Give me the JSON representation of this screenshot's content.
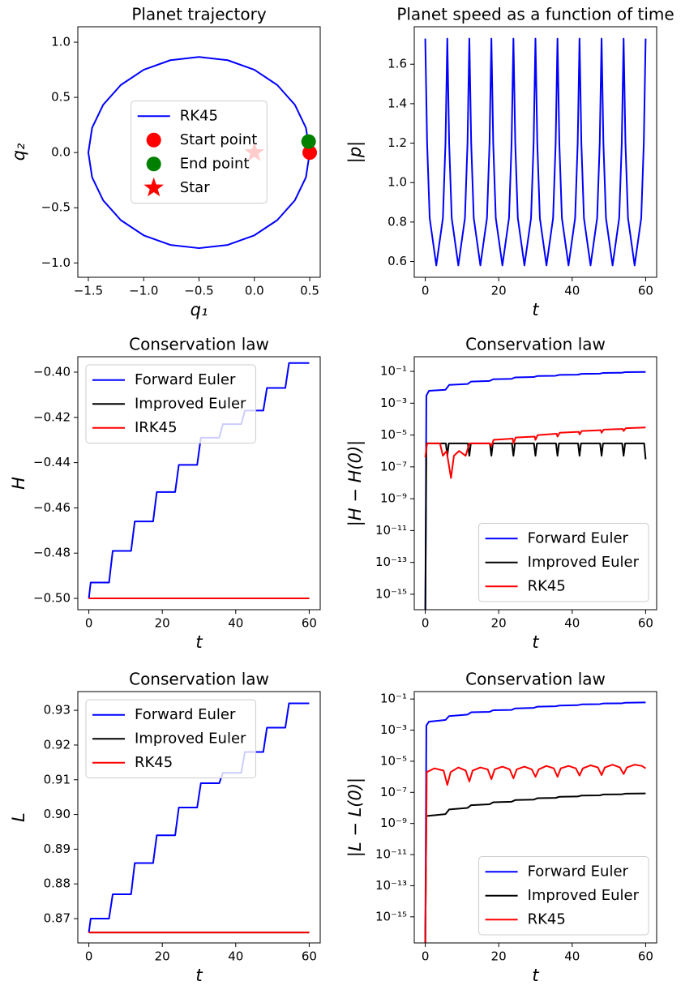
{
  "chart_data": [
    {
      "type": "line",
      "title": "Planet trajectory",
      "xlabel": "q₁",
      "ylabel": "q₂",
      "xlim": [
        -1.595,
        0.595
      ],
      "ylim": [
        -1.13,
        1.14
      ],
      "xticks": [
        {
          "value": -1.5,
          "label": "−1.5"
        },
        {
          "value": -1.0,
          "label": "−1.0"
        },
        {
          "value": -0.5,
          "label": "−0.5"
        },
        {
          "value": 0,
          "label": "0.0"
        },
        0.5
      ],
      "yticks": [
        {
          "value": -1.0,
          "label": "−1.0"
        },
        {
          "value": -0.5,
          "label": "−0.5"
        },
        {
          "value": 0,
          "label": "0.0"
        },
        0.5,
        {
          "value": 1.0,
          "label": "1.0"
        }
      ],
      "legend": "center",
      "series": [
        {
          "name": "RK45",
          "color": "blue",
          "x": [
            0.5,
            0.466,
            0.366,
            0.207,
            0,
            -0.241,
            -0.5,
            -0.759,
            -1.0,
            -1.207,
            -1.366,
            -1.466,
            -1.5,
            -1.466,
            -1.366,
            -1.207,
            -1.0,
            -0.759,
            -0.5,
            -0.241,
            0,
            0.207,
            0.366,
            0.466,
            0.5
          ],
          "values": [
            0,
            0.224,
            0.433,
            0.612,
            0.75,
            0.837,
            0.866,
            0.837,
            0.75,
            0.612,
            0.433,
            0.224,
            0,
            -0.224,
            -0.433,
            -0.612,
            -0.75,
            -0.837,
            -0.866,
            -0.837,
            -0.75,
            -0.612,
            -0.433,
            -0.224,
            0
          ]
        },
        {
          "name": "Start point",
          "color": "red",
          "marker": "circle",
          "x": [
            0.5
          ],
          "values": [
            0
          ]
        },
        {
          "name": "End point",
          "color": "green",
          "marker": "circle",
          "x": [
            0.49
          ],
          "values": [
            0.1
          ]
        },
        {
          "name": "Star",
          "color": "red",
          "marker": "star",
          "x": [
            0
          ],
          "values": [
            0
          ]
        }
      ]
    },
    {
      "type": "line",
      "title": "Planet speed as a function of time",
      "xlabel": "t",
      "ylabel": "|p|",
      "xlim": [
        -3,
        63
      ],
      "ylim": [
        0.52,
        1.79
      ],
      "xticks": [
        0,
        20,
        40,
        60
      ],
      "yticks": [
        0.6,
        0.8,
        {
          "value": 1.0,
          "label": "1.0"
        },
        1.2,
        1.4,
        1.6
      ],
      "series": [
        {
          "color": "blue",
          "x": [
            0,
            0.5,
            1.2,
            3,
            4.8,
            5.5,
            6,
            6.5,
            7.2,
            9,
            10.8,
            11.5,
            12,
            12.5,
            13.2,
            15,
            16.8,
            17.5,
            18,
            18.5,
            19.2,
            21,
            22.8,
            23.5,
            24,
            24.5,
            25.2,
            27,
            28.8,
            29.5,
            30,
            30.5,
            31.2,
            33,
            34.8,
            35.5,
            36,
            36.5,
            37.2,
            39,
            40.8,
            41.5,
            42,
            42.5,
            43.2,
            45,
            46.8,
            47.5,
            48,
            48.5,
            49.2,
            51,
            52.8,
            53.5,
            54,
            54.5,
            55.2,
            57,
            58.8,
            59.5,
            60
          ],
          "values": [
            1.73,
            1.2,
            0.82,
            0.58,
            0.82,
            1.2,
            1.73,
            1.2,
            0.82,
            0.58,
            0.82,
            1.2,
            1.73,
            1.2,
            0.82,
            0.58,
            0.82,
            1.2,
            1.73,
            1.2,
            0.82,
            0.58,
            0.82,
            1.2,
            1.73,
            1.2,
            0.82,
            0.58,
            0.82,
            1.2,
            1.73,
            1.2,
            0.82,
            0.58,
            0.82,
            1.2,
            1.73,
            1.2,
            0.82,
            0.58,
            0.82,
            1.2,
            1.73,
            1.2,
            0.82,
            0.58,
            0.82,
            1.2,
            1.73,
            1.2,
            0.82,
            0.58,
            0.82,
            1.2,
            1.73,
            1.2,
            0.82,
            0.58,
            0.82,
            1.2,
            1.73
          ]
        }
      ]
    },
    {
      "type": "line",
      "title": "Conservation law",
      "xlabel": "t",
      "ylabel": "H",
      "xlim": [
        -3,
        63
      ],
      "ylim": [
        -0.505,
        -0.3932
      ],
      "xticks": [
        0,
        20,
        40,
        60
      ],
      "yticks": [
        {
          "value": -0.5,
          "label": "−0.50"
        },
        {
          "value": -0.48,
          "label": "−0.48"
        },
        {
          "value": -0.46,
          "label": "−0.46"
        },
        {
          "value": -0.44,
          "label": "−0.44"
        },
        {
          "value": -0.42,
          "label": "−0.42"
        },
        {
          "value": -0.4,
          "label": "−0.40"
        }
      ],
      "legend": "upper left",
      "series": [
        {
          "name": "Forward Euler",
          "color": "blue",
          "x": [
            0,
            0.5,
            5.5,
            6.5,
            11.5,
            12.5,
            17.5,
            18.5,
            23.5,
            24.5,
            29.5,
            30.5,
            35.5,
            36.5,
            41.5,
            42.5,
            47.5,
            48.5,
            53.5,
            54.5,
            60
          ],
          "values": [
            -0.5,
            -0.493,
            -0.493,
            -0.479,
            -0.479,
            -0.466,
            -0.466,
            -0.453,
            -0.453,
            -0.441,
            -0.441,
            -0.429,
            -0.429,
            -0.423,
            -0.423,
            -0.417,
            -0.417,
            -0.407,
            -0.407,
            -0.396,
            -0.396
          ]
        },
        {
          "name": "Improved Euler",
          "color": "black",
          "x": [
            0,
            60
          ],
          "values": [
            -0.5,
            -0.5
          ]
        },
        {
          "name": "IRK45",
          "color": "red",
          "x": [
            0,
            60
          ],
          "values": [
            -0.5,
            -0.5
          ]
        }
      ]
    },
    {
      "type": "line",
      "title": "Conservation law",
      "xlabel": "t",
      "ylabel": "|H − H(0)|",
      "yscale": "log",
      "xlim": [
        -3,
        63
      ],
      "ylim": [
        1.07e-16,
        0.83
      ],
      "xticks": [
        0,
        20,
        40,
        60
      ],
      "yticks": [
        {
          "value": 1e-15,
          "label": "10⁻¹⁵"
        },
        {
          "value": 1e-13,
          "label": "10⁻¹³"
        },
        {
          "value": 1e-11,
          "label": "10⁻¹¹"
        },
        {
          "value": 1e-09,
          "label": "10⁻⁹"
        },
        {
          "value": 1e-07,
          "label": "10⁻⁷"
        },
        {
          "value": 1e-05,
          "label": "10⁻⁵"
        },
        {
          "value": 0.001,
          "label": "10⁻³"
        },
        {
          "value": 0.1,
          "label": "10⁻¹"
        }
      ],
      "legend": "lower right",
      "series": [
        {
          "name": "Forward Euler",
          "color": "blue",
          "x": [
            0,
            0.3,
            1,
            5.5,
            6.5,
            11.5,
            12.5,
            17.5,
            18.5,
            23.5,
            24.5,
            29.5,
            30.5,
            35.5,
            36.5,
            41.5,
            42.5,
            47.5,
            48.5,
            53.5,
            54.5,
            60
          ],
          "values": [
            1e-17,
            0.003,
            0.006,
            0.007,
            0.014,
            0.016,
            0.023,
            0.025,
            0.032,
            0.034,
            0.042,
            0.044,
            0.051,
            0.053,
            0.06,
            0.062,
            0.07,
            0.072,
            0.08,
            0.082,
            0.09,
            0.092
          ]
        },
        {
          "name": "Improved Euler",
          "color": "black",
          "x": [
            0,
            0.3,
            5.6,
            6,
            6.4,
            11.6,
            12,
            12.4,
            17.6,
            18,
            18.4,
            23.6,
            24,
            24.4,
            29.6,
            30,
            30.4,
            35.6,
            36,
            36.4,
            41.6,
            42,
            42.4,
            47.6,
            48,
            48.4,
            53.6,
            54,
            54.4,
            59.6,
            60
          ],
          "values": [
            1e-17,
            3e-06,
            3e-06,
            5e-07,
            3e-06,
            3e-06,
            5e-07,
            3e-06,
            3e-06,
            5e-07,
            3e-06,
            3e-06,
            5e-07,
            3e-06,
            3e-06,
            5e-07,
            3e-06,
            3e-06,
            5e-07,
            3e-06,
            3e-06,
            5e-07,
            3e-06,
            3e-06,
            5e-07,
            3e-06,
            3e-06,
            5e-07,
            3e-06,
            3e-06,
            3e-07
          ]
        },
        {
          "name": "RK45",
          "color": "red",
          "x": [
            0,
            0.5,
            4,
            4.8,
            5.8,
            7,
            7.8,
            9.2,
            11,
            12,
            17.6,
            18,
            18.6,
            23.8,
            24,
            24.6,
            29.8,
            30,
            30.6,
            35.8,
            36,
            36.6,
            41.8,
            42,
            42.6,
            47.8,
            48,
            48.6,
            53.8,
            54,
            54.6,
            60
          ],
          "values": [
            4e-07,
            3e-06,
            3e-06,
            5e-07,
            1e-06,
            2e-08,
            5e-07,
            1e-06,
            5e-07,
            3e-06,
            3e-06,
            2e-06,
            5e-06,
            6e-06,
            3e-06,
            7e-06,
            8e-06,
            5e-06,
            1e-05,
            1.2e-05,
            8e-06,
            1.4e-05,
            1.6e-05,
            1.1e-05,
            1.8e-05,
            2e-05,
            1.4e-05,
            2.2e-05,
            2.4e-05,
            1.8e-05,
            2.7e-05,
            3e-05
          ]
        }
      ]
    },
    {
      "type": "line",
      "title": "Conservation law",
      "xlabel": "t",
      "ylabel": "L",
      "xlim": [
        -3,
        63
      ],
      "ylim": [
        0.863,
        0.9354
      ],
      "xticks": [
        0,
        20,
        40,
        60
      ],
      "yticks": [
        0.87,
        0.88,
        0.89,
        {
          "value": 0.9,
          "label": "0.90"
        },
        0.91,
        0.92,
        0.93
      ],
      "legend": "upper left",
      "series": [
        {
          "name": "Forward Euler",
          "color": "blue",
          "x": [
            0,
            0.5,
            5.5,
            6.5,
            11.5,
            12.5,
            17.5,
            18.5,
            23.5,
            24.5,
            29.5,
            30.5,
            35.5,
            36.5,
            41.5,
            42.5,
            47.5,
            48.5,
            53.5,
            54.5,
            60
          ],
          "values": [
            0.866,
            0.87,
            0.87,
            0.877,
            0.877,
            0.886,
            0.886,
            0.894,
            0.894,
            0.902,
            0.902,
            0.909,
            0.909,
            0.912,
            0.912,
            0.918,
            0.918,
            0.925,
            0.925,
            0.932,
            0.932
          ]
        },
        {
          "name": "Improved Euler",
          "color": "black",
          "x": [
            0,
            60
          ],
          "values": [
            0.866,
            0.866
          ]
        },
        {
          "name": "RK45",
          "color": "red",
          "x": [
            0,
            60
          ],
          "values": [
            0.866,
            0.866
          ]
        }
      ]
    },
    {
      "type": "line",
      "title": "Conservation law",
      "xlabel": "t",
      "ylabel": "|L − L(0)|",
      "yscale": "log",
      "xlim": [
        -3,
        63
      ],
      "ylim": [
        2.1e-17,
        0.3
      ],
      "xticks": [
        0,
        20,
        40,
        60
      ],
      "yticks": [
        {
          "value": 1e-15,
          "label": "10⁻¹⁵"
        },
        {
          "value": 1e-13,
          "label": "10⁻¹³"
        },
        {
          "value": 1e-11,
          "label": "10⁻¹¹"
        },
        {
          "value": 1e-09,
          "label": "10⁻⁹"
        },
        {
          "value": 1e-07,
          "label": "10⁻⁷"
        },
        {
          "value": 1e-05,
          "label": "10⁻⁵"
        },
        {
          "value": 0.001,
          "label": "10⁻³"
        },
        {
          "value": 0.1,
          "label": "10⁻¹"
        }
      ],
      "legend": "lower right",
      "series": [
        {
          "name": "Forward Euler",
          "color": "blue",
          "x": [
            0,
            0.3,
            1,
            5.5,
            6.5,
            11.5,
            12.5,
            17.5,
            18.5,
            23.5,
            24.5,
            29.5,
            30.5,
            35.5,
            36.5,
            41.5,
            42.5,
            47.5,
            48.5,
            53.5,
            54.5,
            60
          ],
          "values": [
            1e-17,
            0.002,
            0.0035,
            0.0045,
            0.008,
            0.01,
            0.014,
            0.015,
            0.019,
            0.02,
            0.025,
            0.027,
            0.032,
            0.034,
            0.038,
            0.04,
            0.045,
            0.047,
            0.052,
            0.053,
            0.058,
            0.06
          ]
        },
        {
          "name": "Improved Euler",
          "color": "black",
          "x": [
            0,
            0.3,
            5.5,
            6.5,
            11.5,
            12.5,
            17.5,
            18.5,
            23.5,
            24.5,
            29.5,
            30.5,
            35.5,
            36.5,
            41.5,
            42.5,
            47.5,
            48.5,
            53.5,
            54.5,
            60
          ],
          "values": [
            1e-17,
            3e-09,
            4e-09,
            8e-09,
            1e-08,
            1.5e-08,
            1.7e-08,
            2.3e-08,
            2.5e-08,
            3.2e-08,
            3.4e-08,
            4.2e-08,
            4.4e-08,
            5.2e-08,
            5.4e-08,
            6.2e-08,
            6.4e-08,
            7.3e-08,
            7.5e-08,
            8.3e-08,
            8.5e-08
          ]
        },
        {
          "name": "RK45",
          "color": "red",
          "x": [
            0,
            0.4,
            2.5,
            5,
            6,
            6.9,
            9,
            11,
            12,
            12.9,
            15,
            17,
            18,
            18.9,
            21,
            23,
            24,
            24.9,
            27,
            29,
            30,
            30.9,
            33,
            35,
            36,
            36.9,
            39,
            41,
            42,
            42.9,
            45,
            47,
            48,
            48.9,
            51,
            53,
            54,
            54.9,
            57,
            59,
            60
          ],
          "values": [
            1e-17,
            2e-06,
            3.5e-06,
            2.5e-06,
            3e-07,
            2e-06,
            4e-06,
            2.5e-06,
            5e-07,
            2.5e-06,
            4e-06,
            3e-06,
            7e-07,
            3e-06,
            4.5e-06,
            3e-06,
            8e-07,
            3e-06,
            4.5e-06,
            3e-06,
            1e-06,
            3e-06,
            5e-06,
            3.5e-06,
            1e-06,
            3.5e-06,
            5e-06,
            3.5e-06,
            1.2e-06,
            3.5e-06,
            5.5e-06,
            4e-06,
            1.3e-06,
            4e-06,
            6e-06,
            4e-06,
            1.5e-06,
            4e-06,
            6e-06,
            5e-06,
            3.5e-06
          ]
        }
      ]
    }
  ]
}
